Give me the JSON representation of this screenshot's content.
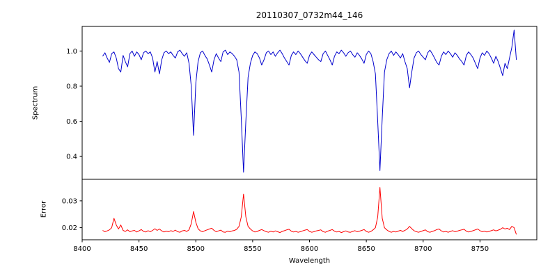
{
  "chart_data": {
    "type": "line",
    "title": "20110307_0732m44_146",
    "xlabel": "Wavelength",
    "xlim": [
      8400,
      8800
    ],
    "xticks": [
      8400,
      8450,
      8500,
      8550,
      8600,
      8650,
      8700,
      8750
    ],
    "xtick_labels": [
      "8400",
      "8450",
      "8500",
      "8550",
      "8600",
      "8650",
      "8700",
      "8750"
    ],
    "grid": false,
    "panels": [
      {
        "name": "spectrum",
        "ylabel": "Spectrum",
        "color": "#0000cd",
        "ylim": [
          0.27,
          1.14
        ],
        "yticks": [
          0.4,
          0.6,
          0.8,
          1.0
        ],
        "ytick_labels": [
          "0.4",
          "0.6",
          "0.8",
          "1.0"
        ]
      },
      {
        "name": "error",
        "ylabel": "Error",
        "color": "#ff0000",
        "ylim": [
          0.0155,
          0.038
        ],
        "yticks": [
          0.02,
          0.03
        ],
        "ytick_labels": [
          "0.02",
          "0.03"
        ]
      }
    ],
    "x": [
      8418,
      8420,
      8422,
      8424,
      8426,
      8428,
      8430,
      8432,
      8434,
      8436,
      8438,
      8440,
      8442,
      8444,
      8446,
      8448,
      8450,
      8452,
      8454,
      8456,
      8458,
      8460,
      8462,
      8464,
      8466,
      8468,
      8470,
      8472,
      8474,
      8476,
      8478,
      8480,
      8482,
      8484,
      8486,
      8488,
      8490,
      8492,
      8494,
      8496,
      8498,
      8500,
      8502,
      8504,
      8506,
      8508,
      8510,
      8512,
      8514,
      8516,
      8518,
      8520,
      8522,
      8524,
      8526,
      8528,
      8530,
      8532,
      8534,
      8536,
      8538,
      8540,
      8542,
      8544,
      8546,
      8548,
      8550,
      8552,
      8554,
      8556,
      8558,
      8560,
      8562,
      8564,
      8566,
      8568,
      8570,
      8572,
      8574,
      8576,
      8578,
      8580,
      8582,
      8584,
      8586,
      8588,
      8590,
      8592,
      8594,
      8596,
      8598,
      8600,
      8602,
      8604,
      8606,
      8608,
      8610,
      8612,
      8614,
      8616,
      8618,
      8620,
      8622,
      8624,
      8626,
      8628,
      8630,
      8632,
      8634,
      8636,
      8638,
      8640,
      8642,
      8644,
      8646,
      8648,
      8650,
      8652,
      8654,
      8656,
      8658,
      8660,
      8662,
      8664,
      8666,
      8668,
      8670,
      8672,
      8674,
      8676,
      8678,
      8680,
      8682,
      8684,
      8686,
      8688,
      8690,
      8692,
      8694,
      8696,
      8698,
      8700,
      8702,
      8704,
      8706,
      8708,
      8710,
      8712,
      8714,
      8716,
      8718,
      8720,
      8722,
      8724,
      8726,
      8728,
      8730,
      8732,
      8734,
      8736,
      8738,
      8740,
      8742,
      8744,
      8746,
      8748,
      8750,
      8752,
      8754,
      8756,
      8758,
      8760,
      8762,
      8764,
      8766,
      8768,
      8770,
      8772,
      8774,
      8776,
      8778,
      8780,
      8782
    ],
    "series": [
      {
        "name": "spectrum",
        "values": [
          0.97,
          0.99,
          0.96,
          0.935,
          0.985,
          0.995,
          0.96,
          0.9,
          0.88,
          0.975,
          0.94,
          0.91,
          0.985,
          1.0,
          0.97,
          0.995,
          0.98,
          0.95,
          0.99,
          1.0,
          0.985,
          0.995,
          0.96,
          0.88,
          0.94,
          0.87,
          0.95,
          0.99,
          1.0,
          0.985,
          0.995,
          0.975,
          0.96,
          0.995,
          1.005,
          0.985,
          0.97,
          0.99,
          0.93,
          0.8,
          0.52,
          0.82,
          0.94,
          0.99,
          1.0,
          0.975,
          0.955,
          0.92,
          0.88,
          0.95,
          0.985,
          0.96,
          0.94,
          0.995,
          1.005,
          0.98,
          0.995,
          0.985,
          0.97,
          0.95,
          0.88,
          0.62,
          0.31,
          0.6,
          0.85,
          0.93,
          0.975,
          0.995,
          0.985,
          0.96,
          0.92,
          0.95,
          0.99,
          1.0,
          0.98,
          0.995,
          0.97,
          0.99,
          1.005,
          0.985,
          0.96,
          0.94,
          0.92,
          0.975,
          0.995,
          0.98,
          1.0,
          0.985,
          0.965,
          0.945,
          0.93,
          0.975,
          0.995,
          0.98,
          0.965,
          0.95,
          0.94,
          0.985,
          1.0,
          0.975,
          0.95,
          0.92,
          0.97,
          0.995,
          0.985,
          1.005,
          0.99,
          0.97,
          0.99,
          1.0,
          0.98,
          0.965,
          0.99,
          0.975,
          0.955,
          0.93,
          0.98,
          1.0,
          0.985,
          0.94,
          0.87,
          0.6,
          0.32,
          0.62,
          0.88,
          0.95,
          0.985,
          1.0,
          0.975,
          0.995,
          0.98,
          0.96,
          0.985,
          0.94,
          0.9,
          0.79,
          0.88,
          0.96,
          0.99,
          1.0,
          0.98,
          0.965,
          0.95,
          0.99,
          1.005,
          0.985,
          0.96,
          0.935,
          0.92,
          0.97,
          0.995,
          0.98,
          1.0,
          0.985,
          0.965,
          0.99,
          0.975,
          0.955,
          0.94,
          0.92,
          0.975,
          0.995,
          0.98,
          0.96,
          0.93,
          0.9,
          0.96,
          0.99,
          0.975,
          1.0,
          0.985,
          0.96,
          0.93,
          0.97,
          0.94,
          0.9,
          0.86,
          0.93,
          0.9,
          0.96,
          1.02,
          1.12,
          0.95
        ]
      },
      {
        "name": "error",
        "values": [
          0.019,
          0.0185,
          0.0188,
          0.0192,
          0.02,
          0.0235,
          0.021,
          0.0195,
          0.021,
          0.019,
          0.0186,
          0.0192,
          0.0185,
          0.0188,
          0.019,
          0.0184,
          0.0188,
          0.0193,
          0.0186,
          0.0184,
          0.0189,
          0.0185,
          0.019,
          0.0196,
          0.019,
          0.0195,
          0.0188,
          0.0184,
          0.0187,
          0.0185,
          0.0189,
          0.0186,
          0.0191,
          0.0185,
          0.0183,
          0.0188,
          0.019,
          0.0186,
          0.0192,
          0.0215,
          0.026,
          0.022,
          0.0196,
          0.0188,
          0.0185,
          0.0189,
          0.0192,
          0.0195,
          0.0198,
          0.019,
          0.0185,
          0.0188,
          0.0191,
          0.0184,
          0.0183,
          0.0187,
          0.0185,
          0.0188,
          0.019,
          0.0194,
          0.0205,
          0.024,
          0.0325,
          0.024,
          0.0205,
          0.0195,
          0.0188,
          0.0184,
          0.0186,
          0.019,
          0.0193,
          0.0189,
          0.0185,
          0.0183,
          0.0187,
          0.0184,
          0.0188,
          0.0185,
          0.0182,
          0.0186,
          0.0189,
          0.0192,
          0.0194,
          0.0187,
          0.0184,
          0.0186,
          0.0183,
          0.0185,
          0.0188,
          0.0191,
          0.0193,
          0.0186,
          0.0183,
          0.0185,
          0.0188,
          0.019,
          0.0192,
          0.0185,
          0.0183,
          0.0187,
          0.019,
          0.0193,
          0.0187,
          0.0184,
          0.0186,
          0.0182,
          0.0185,
          0.0188,
          0.0184,
          0.0183,
          0.0186,
          0.0189,
          0.0185,
          0.0187,
          0.019,
          0.0193,
          0.0186,
          0.0183,
          0.0186,
          0.0192,
          0.02,
          0.024,
          0.035,
          0.0235,
          0.02,
          0.0192,
          0.0186,
          0.0183,
          0.0186,
          0.0184,
          0.0187,
          0.019,
          0.0186,
          0.019,
          0.0195,
          0.0205,
          0.0196,
          0.0189,
          0.0185,
          0.0183,
          0.0186,
          0.0189,
          0.0192,
          0.0185,
          0.0183,
          0.0186,
          0.0189,
          0.0193,
          0.0195,
          0.0188,
          0.0184,
          0.0186,
          0.0183,
          0.0186,
          0.0189,
          0.0185,
          0.0187,
          0.019,
          0.0192,
          0.0194,
          0.0187,
          0.0184,
          0.0186,
          0.0189,
          0.0192,
          0.0195,
          0.0189,
          0.0185,
          0.0187,
          0.0184,
          0.0186,
          0.0189,
          0.0192,
          0.0188,
          0.0191,
          0.0194,
          0.02,
          0.0195,
          0.0198,
          0.0193,
          0.0205,
          0.02,
          0.0175
        ]
      }
    ]
  }
}
